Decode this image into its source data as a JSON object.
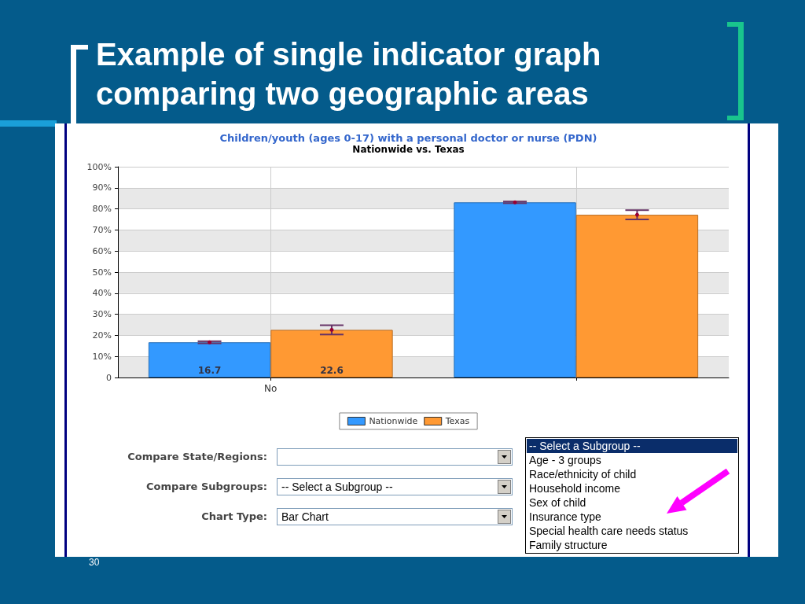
{
  "chart_data": {
    "type": "bar",
    "title": "Children/youth (ages 0-17) with a personal doctor or nurse (PDN)",
    "subtitle": "Nationwide vs. Texas",
    "categories": [
      "No",
      null
    ],
    "series": [
      {
        "name": "Nationwide",
        "color": "#3399ff",
        "values": [
          16.7,
          83.1
        ],
        "errors": [
          0.5,
          0.4
        ],
        "value_labels": [
          "16.7",
          null
        ]
      },
      {
        "name": "Texas",
        "color": "#ff9933",
        "values": [
          22.6,
          77.2
        ],
        "errors": [
          2.2,
          2.2
        ],
        "value_labels": [
          "22.6",
          null
        ]
      }
    ],
    "ylim": [
      0,
      100
    ],
    "yticks": [
      0,
      {
        "value": 10,
        "label": "10%"
      },
      {
        "value": 20,
        "label": "20%"
      },
      {
        "value": 30,
        "label": "30%"
      },
      {
        "value": 40,
        "label": "40%"
      },
      {
        "value": 50,
        "label": "50%"
      },
      {
        "value": 60,
        "label": "60%"
      },
      {
        "value": 70,
        "label": "70%"
      },
      {
        "value": 80,
        "label": "80%"
      },
      {
        "value": 90,
        "label": "90%"
      },
      {
        "value": 100,
        "label": "100%"
      }
    ],
    "grid": true,
    "legend": "bottom",
    "annotations": [
      "Example of single indicator graph comparing two geographic areas",
      "Compare State/Regions:",
      "Compare Subgroups:",
      "-- Select a Subgroup --",
      "Chart Type:",
      "Bar Chart",
      "-- Select a Subgroup --",
      "Age - 3 groups",
      "Race/ethnicity of child",
      "Household income",
      "Sex of child",
      "Insurance type",
      "Special health care needs status",
      "Family structure",
      "30"
    ]
  }
}
